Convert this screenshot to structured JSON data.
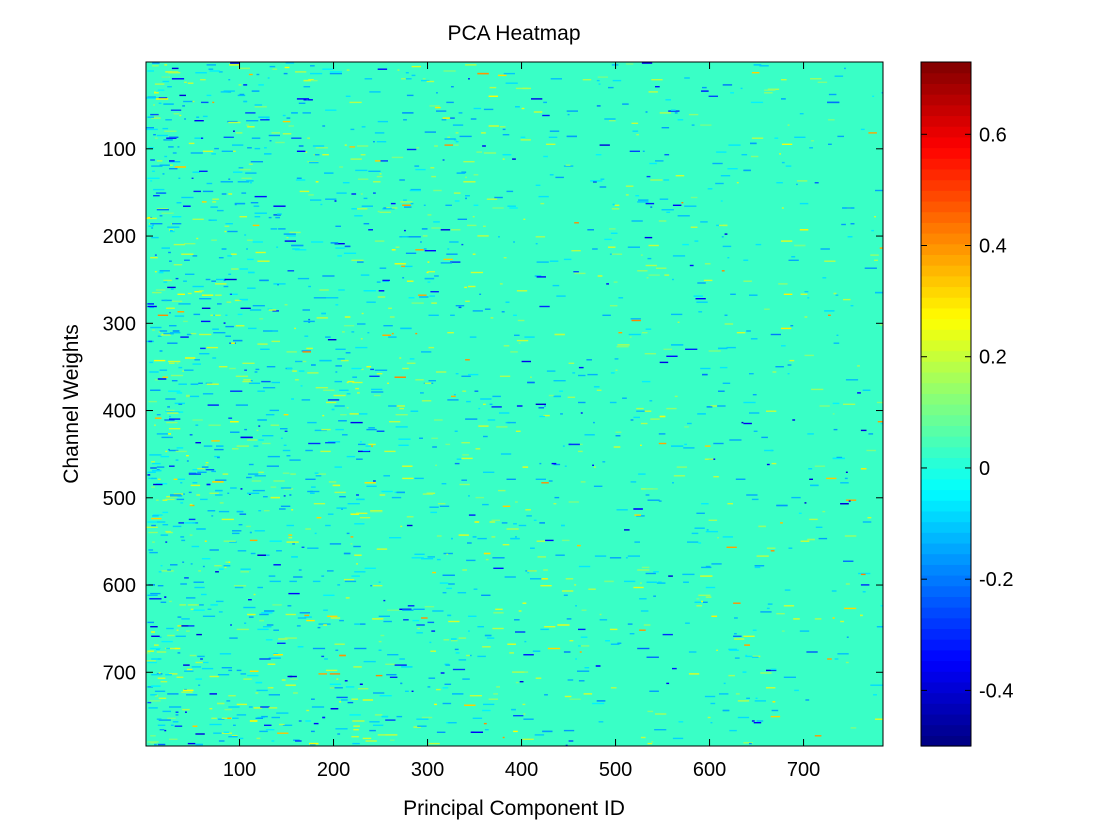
{
  "chart_data": {
    "type": "heatmap",
    "title": "PCA Heatmap",
    "xlabel": "Principal Component ID",
    "ylabel": "Channel Weights",
    "x_range": [
      1,
      784
    ],
    "y_range": [
      1,
      784
    ],
    "y_direction": "top-to-bottom",
    "x_ticks": [
      100,
      200,
      300,
      400,
      500,
      600,
      700
    ],
    "y_ticks": [
      100,
      200,
      300,
      400,
      500,
      600,
      700
    ],
    "colormap": "jet",
    "color_range": [
      -0.5,
      0.73
    ],
    "colorbar_ticks": [
      "0.6",
      "0.4",
      "0.2",
      "0",
      "-0.2",
      "-0.4"
    ],
    "colorbar_tick_values": [
      0.6,
      0.4,
      0.2,
      0,
      -0.2,
      -0.4
    ],
    "background_value": 0.03,
    "grid": false,
    "legend": "colorbar right"
  }
}
